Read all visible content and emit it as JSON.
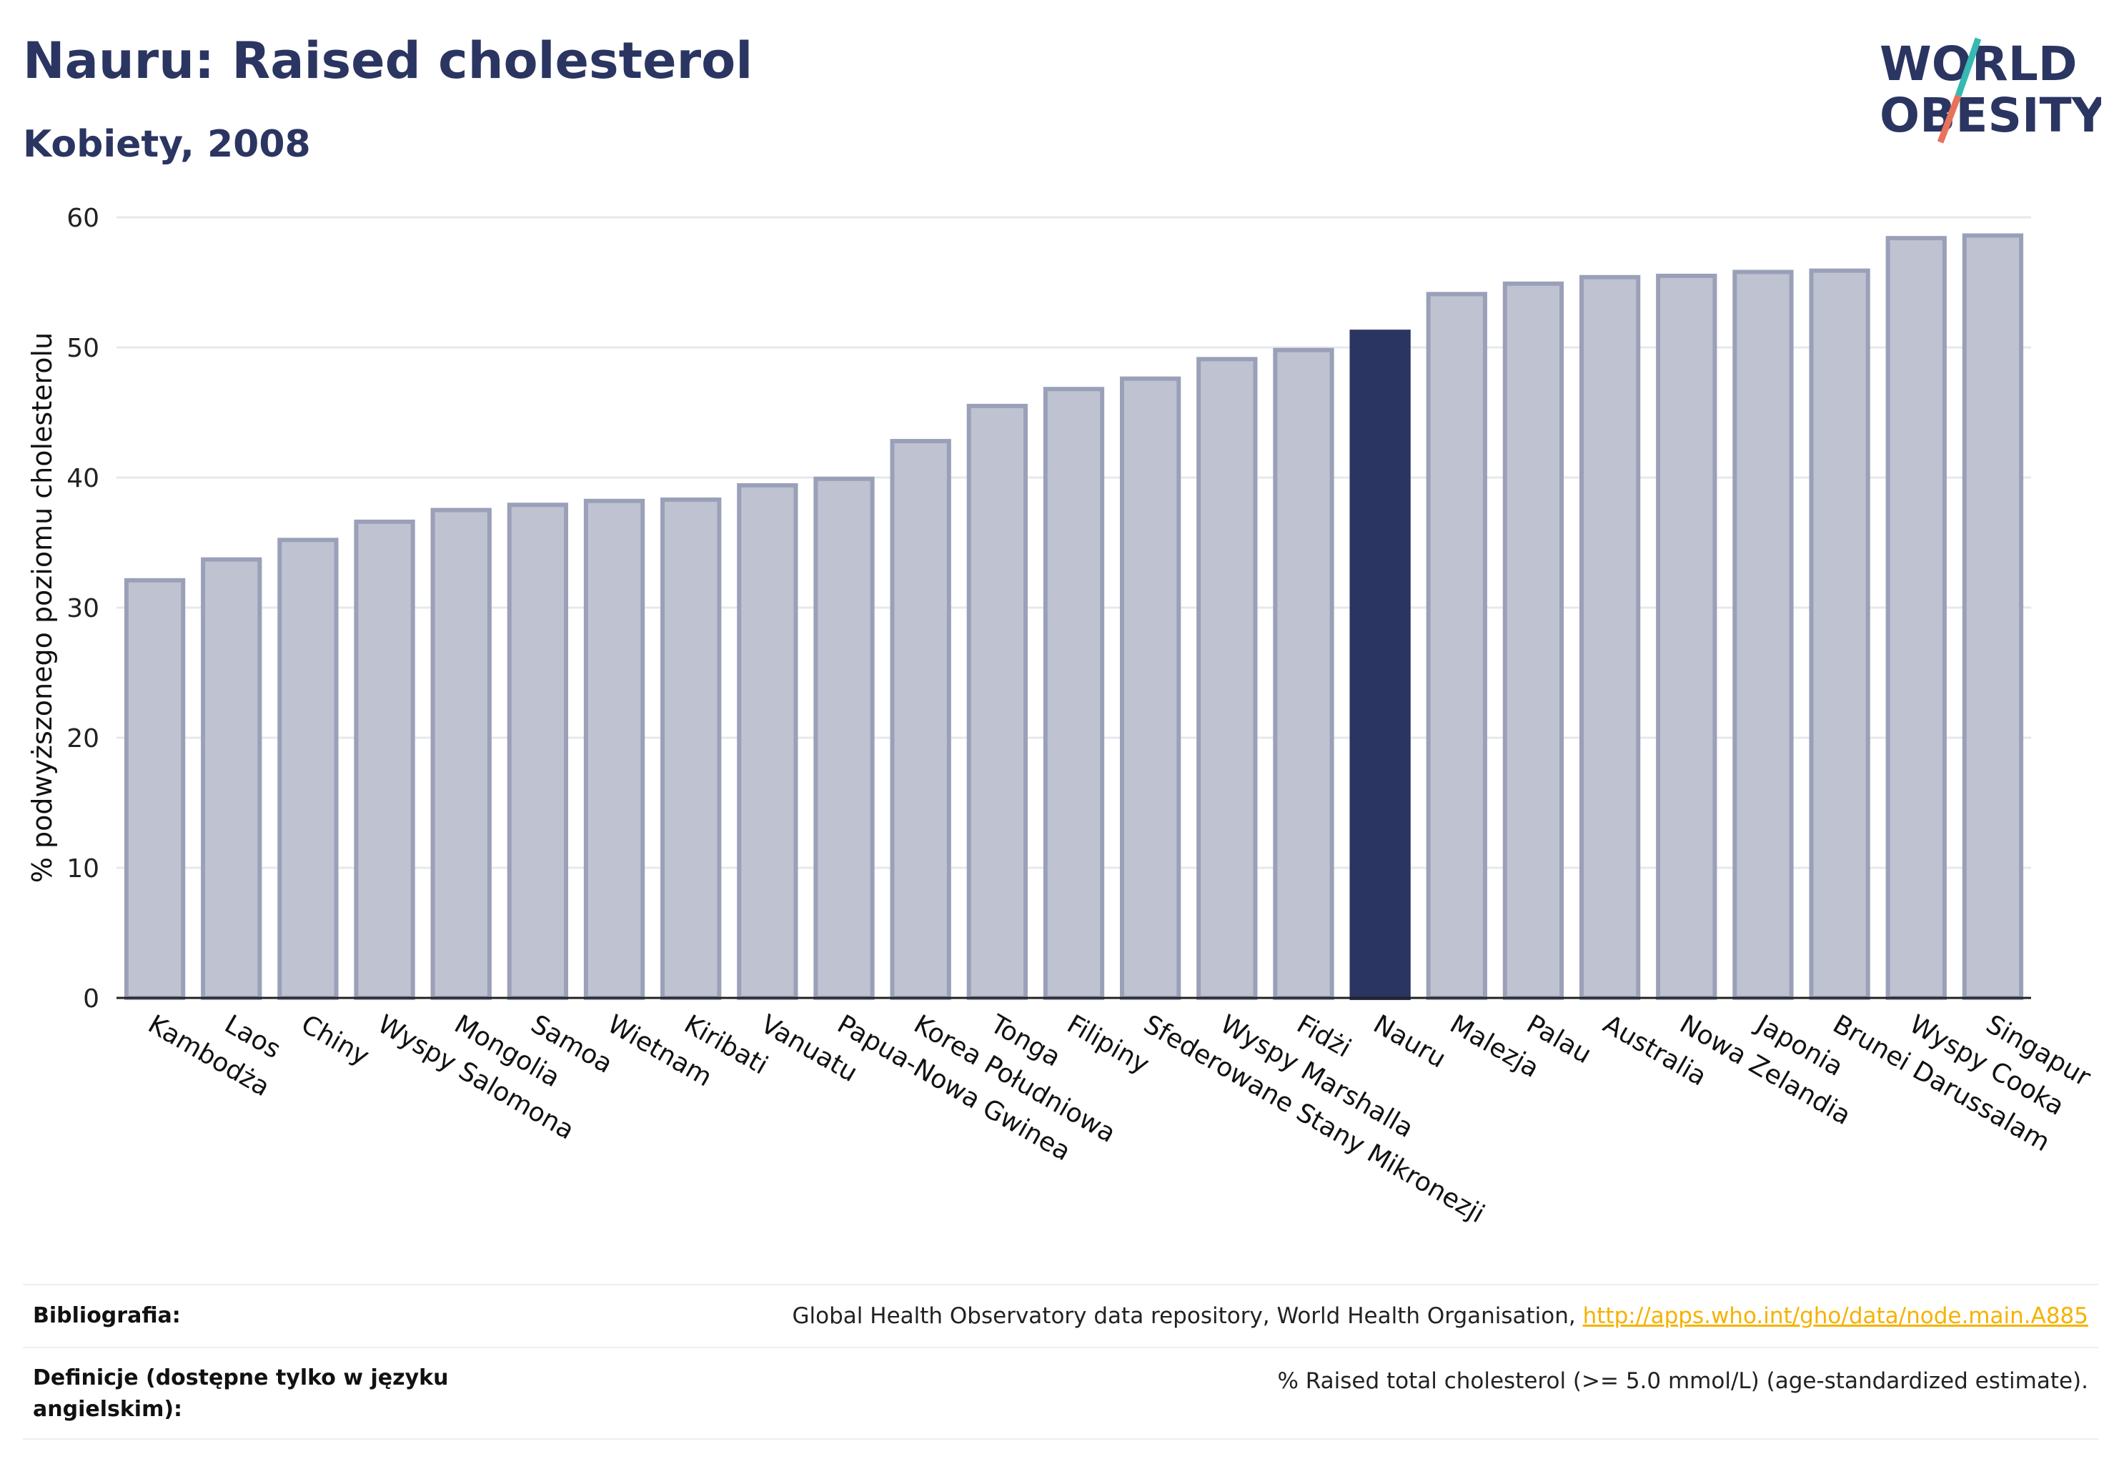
{
  "header": {
    "title": "Nauru: Raised cholesterol",
    "subtitle": "Kobiety, 2008"
  },
  "logo": {
    "line1": "WORLD",
    "line2": "OBESITY",
    "name": "world-obesity-logo"
  },
  "chart_data": {
    "type": "bar",
    "title": "Nauru: Raised cholesterol",
    "subtitle": "Kobiety, 2008",
    "ylabel": "% podwyższonego poziomu cholesterolu",
    "xlabel": "",
    "ylim": [
      0,
      60
    ],
    "yticks": [
      0,
      10,
      20,
      30,
      40,
      50,
      60
    ],
    "grid": true,
    "highlight": "Nauru",
    "colors": {
      "bar": "#bfc2d0",
      "bar_edge": "#9aa0b8",
      "highlight": "#2b3561",
      "grid": "#e6e8ee",
      "axis": "#222222"
    },
    "categories": [
      "Kambodża",
      "Laos",
      "Chiny",
      "Wyspy Salomona",
      "Mongolia",
      "Samoa",
      "Wietnam",
      "Kiribati",
      "Vanuatu",
      "Papua-Nowa Gwinea",
      "Korea Południowa",
      "Tonga",
      "Filipiny",
      "Sfederowane Stany Mikronezji",
      "Wyspy Marshalla",
      "Fidżi",
      "Nauru",
      "Malezja",
      "Palau",
      "Australia",
      "Nowa Zelandia",
      "Japonia",
      "Brunei Darussalam",
      "Wyspy Cooka",
      "Singapur"
    ],
    "values": [
      32.1,
      33.7,
      35.2,
      36.6,
      37.5,
      37.9,
      38.2,
      38.3,
      39.4,
      39.9,
      42.8,
      45.5,
      46.8,
      47.6,
      49.1,
      49.8,
      51.2,
      54.1,
      54.9,
      55.4,
      55.5,
      55.8,
      55.9,
      58.4,
      58.6
    ]
  },
  "footer": {
    "bibliography_label": "Bibliografia:",
    "bibliography_text": "Global Health Observatory data repository, World Health Organisation, ",
    "bibliography_link": "http://apps.who.int/gho/data/node.main.A885",
    "definitions_label_line1": "Definicje (dostępne tylko w języku",
    "definitions_label_line2": "angielskim):",
    "definitions_text": "% Raised total cholesterol (>= 5.0 mmol/L) (age-standardized estimate)."
  }
}
